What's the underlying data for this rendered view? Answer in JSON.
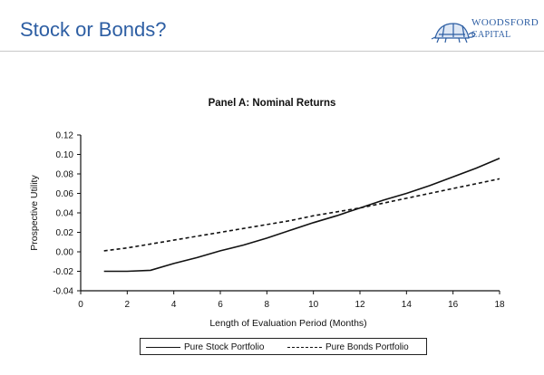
{
  "header": {
    "title": "Stock or Bonds?",
    "logo": {
      "line1": "WOODSFORD",
      "line2": "CAPITAL",
      "icon": "tortoise-icon"
    }
  },
  "colors": {
    "title": "#2d5ea3",
    "line": "#111111"
  },
  "chart_data": {
    "type": "line",
    "title": "Panel A:  Nominal Returns",
    "xlabel": "Length of Evaluation Period (Months)",
    "ylabel": "Prospective Utility",
    "xlim": [
      0,
      18
    ],
    "ylim": [
      -0.04,
      0.12
    ],
    "xticks": [
      0,
      2,
      4,
      6,
      8,
      10,
      12,
      14,
      16,
      18
    ],
    "yticks": [
      -0.04,
      -0.02,
      0.0,
      0.02,
      0.04,
      0.06,
      0.08,
      0.1,
      0.12
    ],
    "ytick_labels": [
      "-0.04",
      "-0.02",
      "0.00",
      "0.02",
      "0.04",
      "0.06",
      "0.08",
      "0.10",
      "0.12"
    ],
    "grid": false,
    "legend_position": "bottom",
    "series": [
      {
        "name": "Pure Stock Portfolio",
        "style": "solid",
        "x": [
          1,
          2,
          3,
          4,
          5,
          6,
          7,
          8,
          9,
          10,
          11,
          12,
          13,
          14,
          15,
          16,
          17,
          18
        ],
        "y": [
          -0.02,
          -0.02,
          -0.019,
          -0.012,
          -0.006,
          0.001,
          0.007,
          0.014,
          0.022,
          0.03,
          0.037,
          0.045,
          0.053,
          0.06,
          0.068,
          0.077,
          0.086,
          0.096
        ]
      },
      {
        "name": "Pure Bonds Portfolio",
        "style": "dashed",
        "x": [
          1,
          2,
          3,
          4,
          5,
          6,
          7,
          8,
          9,
          10,
          11,
          12,
          13,
          14,
          15,
          16,
          17,
          18
        ],
        "y": [
          0.001,
          0.004,
          0.008,
          0.012,
          0.016,
          0.02,
          0.024,
          0.028,
          0.032,
          0.037,
          0.041,
          0.045,
          0.05,
          0.055,
          0.06,
          0.065,
          0.07,
          0.075
        ]
      }
    ]
  }
}
